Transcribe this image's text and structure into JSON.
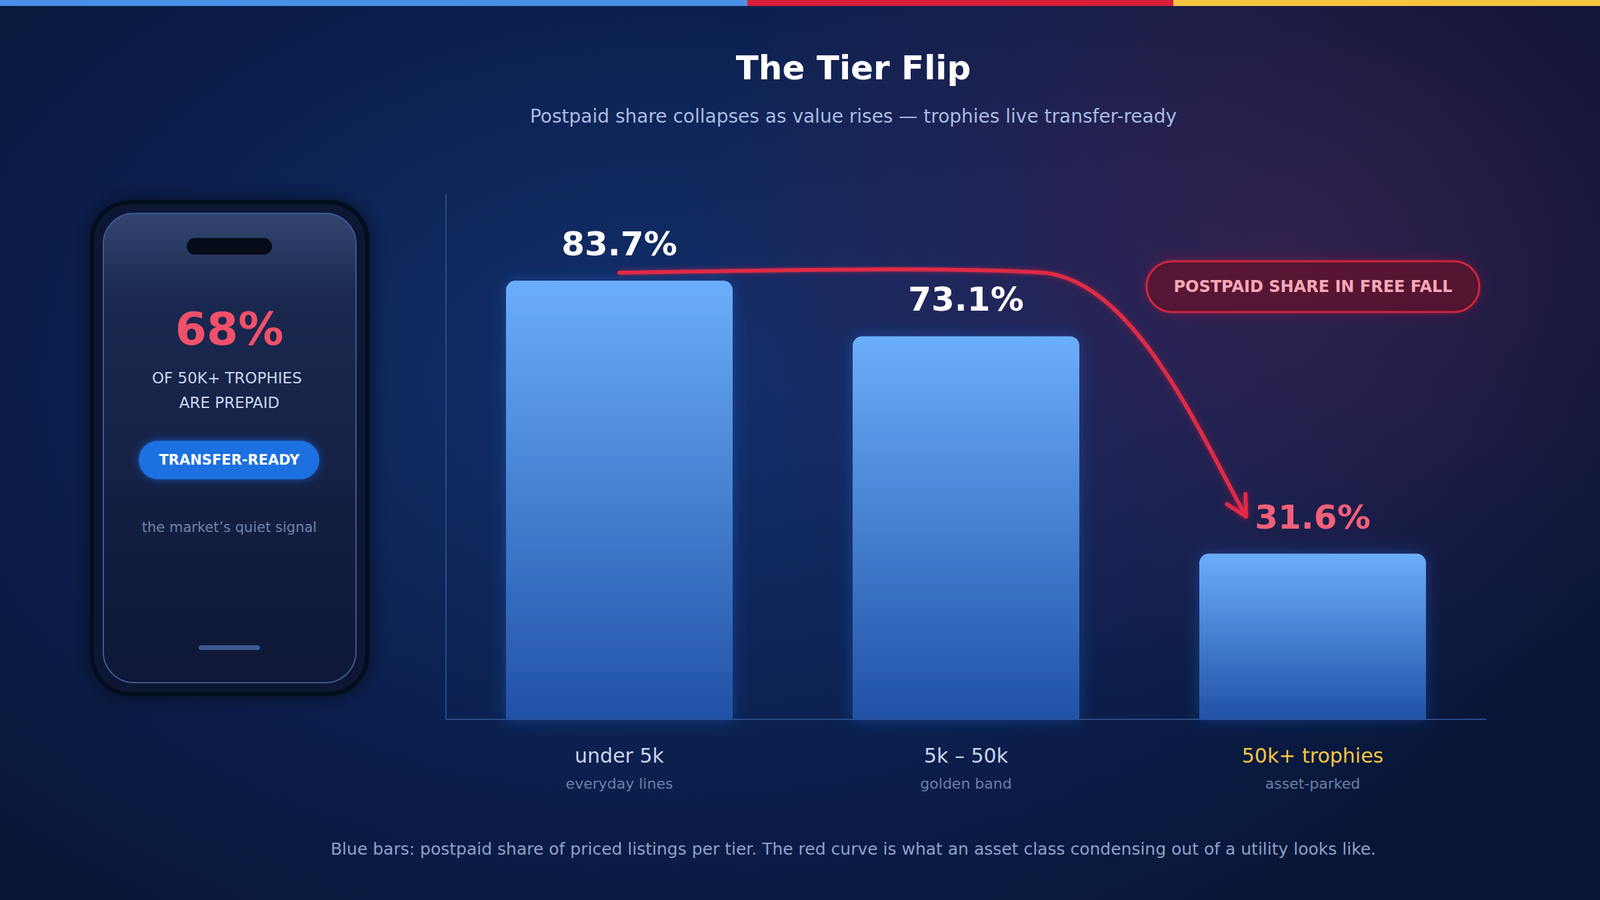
{
  "chart_data": {
    "type": "bar",
    "title": "The Tier Flip",
    "subtitle": "Postpaid share collapses as value rises — trophies live transfer-ready",
    "categories": [
      "under 5k",
      "5k – 50k",
      "50k+ trophies"
    ],
    "category_notes": [
      "everyday lines",
      "golden band",
      "asset-parked"
    ],
    "values": [
      83.7,
      73.1,
      31.6
    ],
    "value_labels": [
      "83.7%",
      "73.1%",
      "31.6%"
    ],
    "color": "#6aaefa",
    "ylim": [
      0,
      100
    ],
    "grid": false,
    "tick_labels": "x",
    "data_labels": true,
    "annotations": {
      "badge": "POSTPAID SHARE IN FREE FALL",
      "footnote": "Blue bars: postpaid share of priced listings per tier. The red curve is what an asset class condensing out of a utility looks like.",
      "callout": {
        "stat": "68%",
        "text": "OF 50K+ TROPHIES ARE PREPAID",
        "tag": "TRANSFER-READY",
        "note": "the market’s quiet signal"
      }
    }
  }
}
